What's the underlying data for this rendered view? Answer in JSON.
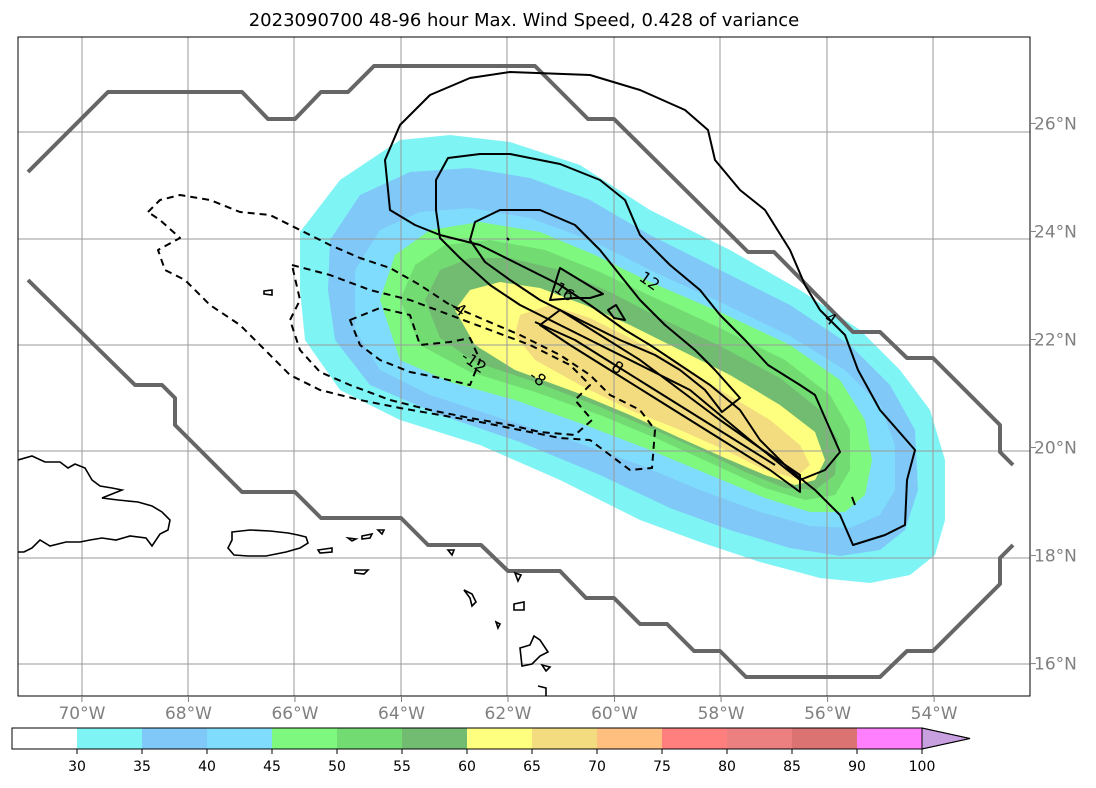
{
  "chart_data": {
    "type": "contour-map",
    "title": "2023090700 48-96 hour Max. Wind Speed, 0.428 of variance",
    "x_ticks": [
      {
        "lon": -70,
        "label": "70°W"
      },
      {
        "lon": -68,
        "label": "68°W"
      },
      {
        "lon": -66,
        "label": "66°W"
      },
      {
        "lon": -64,
        "label": "64°W"
      },
      {
        "lon": -62,
        "label": "62°W"
      },
      {
        "lon": -60,
        "label": "60°W"
      },
      {
        "lon": -58,
        "label": "58°W"
      },
      {
        "lon": -56,
        "label": "56°W"
      },
      {
        "lon": -54,
        "label": "54°W"
      }
    ],
    "y_ticks": [
      {
        "lat": 16,
        "label": "16°N"
      },
      {
        "lat": 18,
        "label": "18°N"
      },
      {
        "lat": 20,
        "label": "20°N"
      },
      {
        "lat": 22,
        "label": "22°N"
      },
      {
        "lat": 24,
        "label": "24°N"
      },
      {
        "lat": 26,
        "label": "26°N"
      }
    ],
    "xlim": [
      -71.2,
      -52.2
    ],
    "ylim": [
      15.4,
      27.6
    ],
    "grid": true,
    "colorbar": {
      "levels": [
        30,
        35,
        40,
        45,
        50,
        55,
        60,
        65,
        70,
        75,
        80,
        85,
        90,
        100
      ],
      "labels": [
        "30",
        "35",
        "40",
        "45",
        "50",
        "55",
        "60",
        "65",
        "70",
        "75",
        "80",
        "85",
        "90",
        "100"
      ],
      "colors": [
        "#7ff4f4",
        "#7fc8f8",
        "#7fdcfc",
        "#7ff87f",
        "#72dc72",
        "#72bc72",
        "#ffff7f",
        "#f2dc7f",
        "#ffc07f",
        "#ff7f7f",
        "#ec7f7f",
        "#dc7373",
        "#ff7fff",
        "#c8a0e0"
      ],
      "extend": "max",
      "below_color": "#ffffff"
    },
    "contour_labels": [
      {
        "text": "4",
        "lon": -56.0,
        "lat": 22.3
      },
      {
        "text": "12",
        "lon": -59.4,
        "lat": 23.0
      },
      {
        "text": "16",
        "lon": -61.0,
        "lat": 22.8
      },
      {
        "text": "8",
        "lon": -60.0,
        "lat": 21.4
      },
      {
        "text": "-4",
        "lon": -63.0,
        "lat": 22.5
      },
      {
        "text": "-8",
        "lon": -61.5,
        "lat": 21.2
      },
      {
        "text": "-12",
        "lon": -62.7,
        "lat": 21.5
      }
    ]
  }
}
